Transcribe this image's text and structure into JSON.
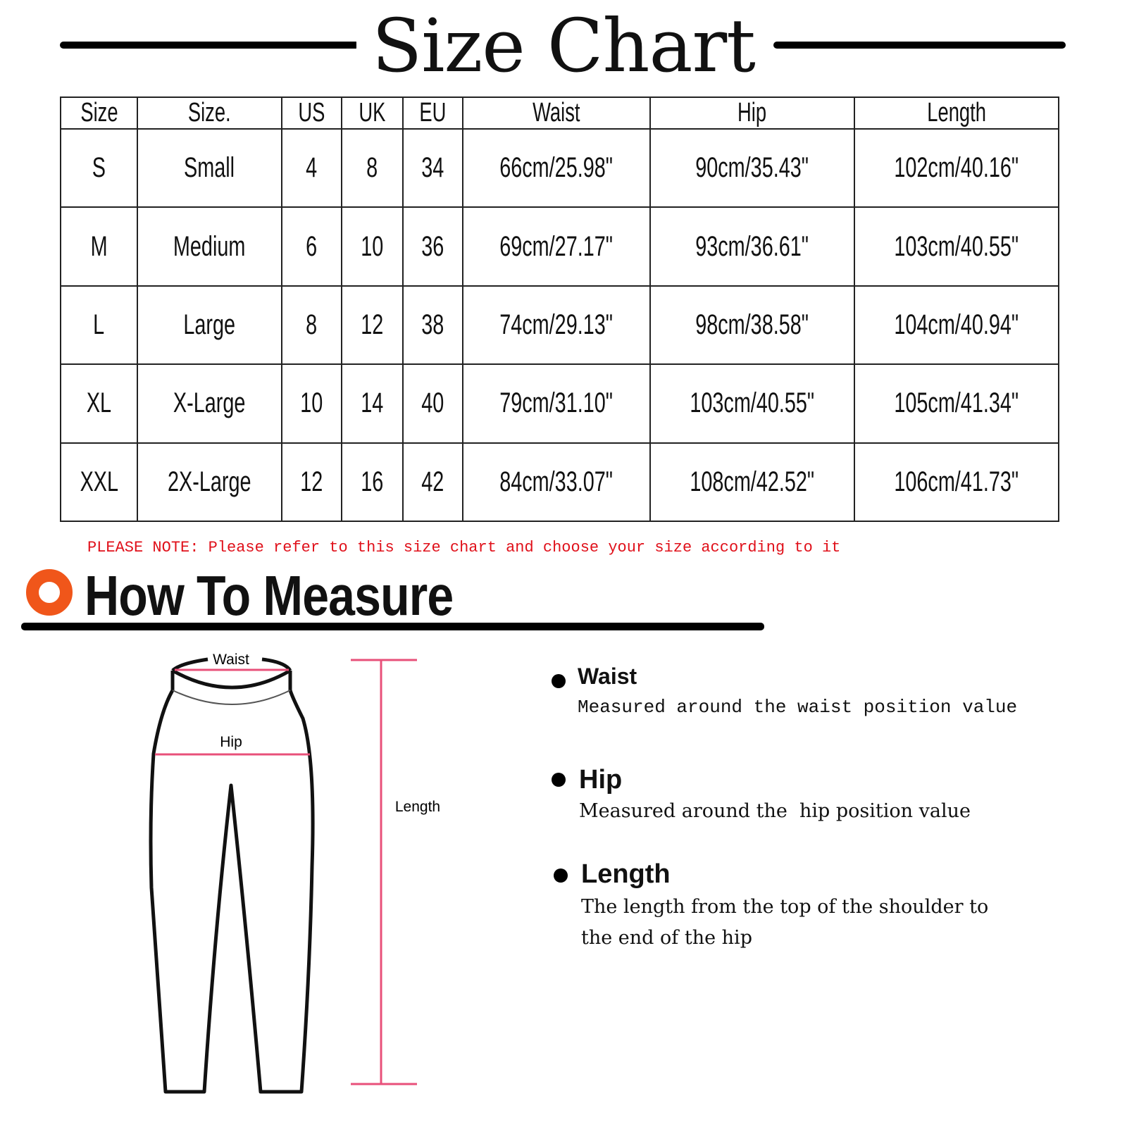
{
  "title": "Size Chart",
  "table": {
    "headers": [
      "Size",
      "Size.",
      "US",
      "UK",
      "EU",
      "Waist",
      "Hip",
      "Length"
    ],
    "rows": [
      [
        "S",
        "Small",
        "4",
        "8",
        "34",
        "66cm/25.98\"",
        "90cm/35.43\"",
        "102cm/40.16\""
      ],
      [
        "M",
        "Medium",
        "6",
        "10",
        "36",
        "69cm/27.17\"",
        "93cm/36.61\"",
        "103cm/40.55\""
      ],
      [
        "L",
        "Large",
        "8",
        "12",
        "38",
        "74cm/29.13\"",
        "98cm/38.58\"",
        "104cm/40.94\""
      ],
      [
        "XL",
        "X-Large",
        "10",
        "14",
        "40",
        "79cm/31.10\"",
        "103cm/40.55\"",
        "105cm/41.34\""
      ],
      [
        "XXL",
        "2X-Large",
        "12",
        "16",
        "42",
        "84cm/33.07\"",
        "108cm/42.52\"",
        "106cm/41.73\""
      ]
    ]
  },
  "note": "PLEASE NOTE: Please refer to this size chart and choose your size according to it",
  "how_to": {
    "title": "How To Measure",
    "icon": "orange-ring-icon",
    "accent": "#f0561a",
    "diagram_labels": {
      "waist": "Waist",
      "hip": "Hip",
      "length": "Length"
    },
    "measure_color": "#e8507a",
    "items": [
      {
        "label": "Waist",
        "desc": "Measured around the waist position value"
      },
      {
        "label": "Hip",
        "desc": "Measured around the  hip position value"
      },
      {
        "label": "Length",
        "desc": "The length from the top of the shoulder to the end of the hip"
      }
    ]
  }
}
